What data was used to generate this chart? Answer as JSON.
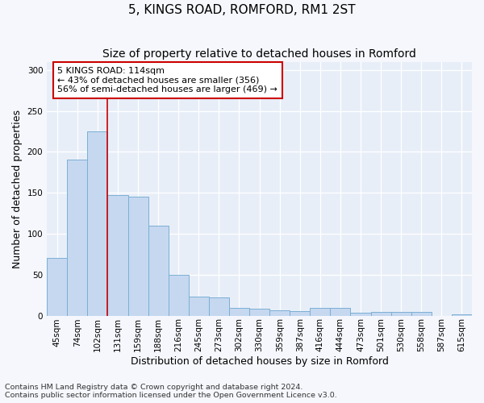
{
  "title1": "5, KINGS ROAD, ROMFORD, RM1 2ST",
  "title2": "Size of property relative to detached houses in Romford",
  "xlabel": "Distribution of detached houses by size in Romford",
  "ylabel": "Number of detached properties",
  "categories": [
    "45sqm",
    "74sqm",
    "102sqm",
    "131sqm",
    "159sqm",
    "188sqm",
    "216sqm",
    "245sqm",
    "273sqm",
    "302sqm",
    "330sqm",
    "359sqm",
    "387sqm",
    "416sqm",
    "444sqm",
    "473sqm",
    "501sqm",
    "530sqm",
    "558sqm",
    "587sqm",
    "615sqm"
  ],
  "values": [
    70,
    190,
    225,
    147,
    145,
    110,
    50,
    23,
    22,
    9,
    8,
    6,
    5,
    9,
    9,
    3,
    4,
    4,
    4,
    0,
    2
  ],
  "bar_color": "#c5d8f0",
  "bar_edge_color": "#7bafd4",
  "annotation_text_line1": "5 KINGS ROAD: 114sqm",
  "annotation_text_line2": "← 43% of detached houses are smaller (356)",
  "annotation_text_line3": "56% of semi-detached houses are larger (469) →",
  "annotation_box_color": "white",
  "annotation_box_edge_color": "#cc0000",
  "vline_color": "#cc0000",
  "vline_x": 2.5,
  "ylim": [
    0,
    310
  ],
  "yticks": [
    0,
    50,
    100,
    150,
    200,
    250,
    300
  ],
  "footer_line1": "Contains HM Land Registry data © Crown copyright and database right 2024.",
  "footer_line2": "Contains public sector information licensed under the Open Government Licence v3.0.",
  "bg_color": "#f5f7fc",
  "plot_bg_color": "#e8eef8",
  "grid_color": "white",
  "title_fontsize": 11,
  "subtitle_fontsize": 10,
  "axis_label_fontsize": 9,
  "tick_fontsize": 7.5,
  "annotation_fontsize": 8,
  "footer_fontsize": 6.8
}
